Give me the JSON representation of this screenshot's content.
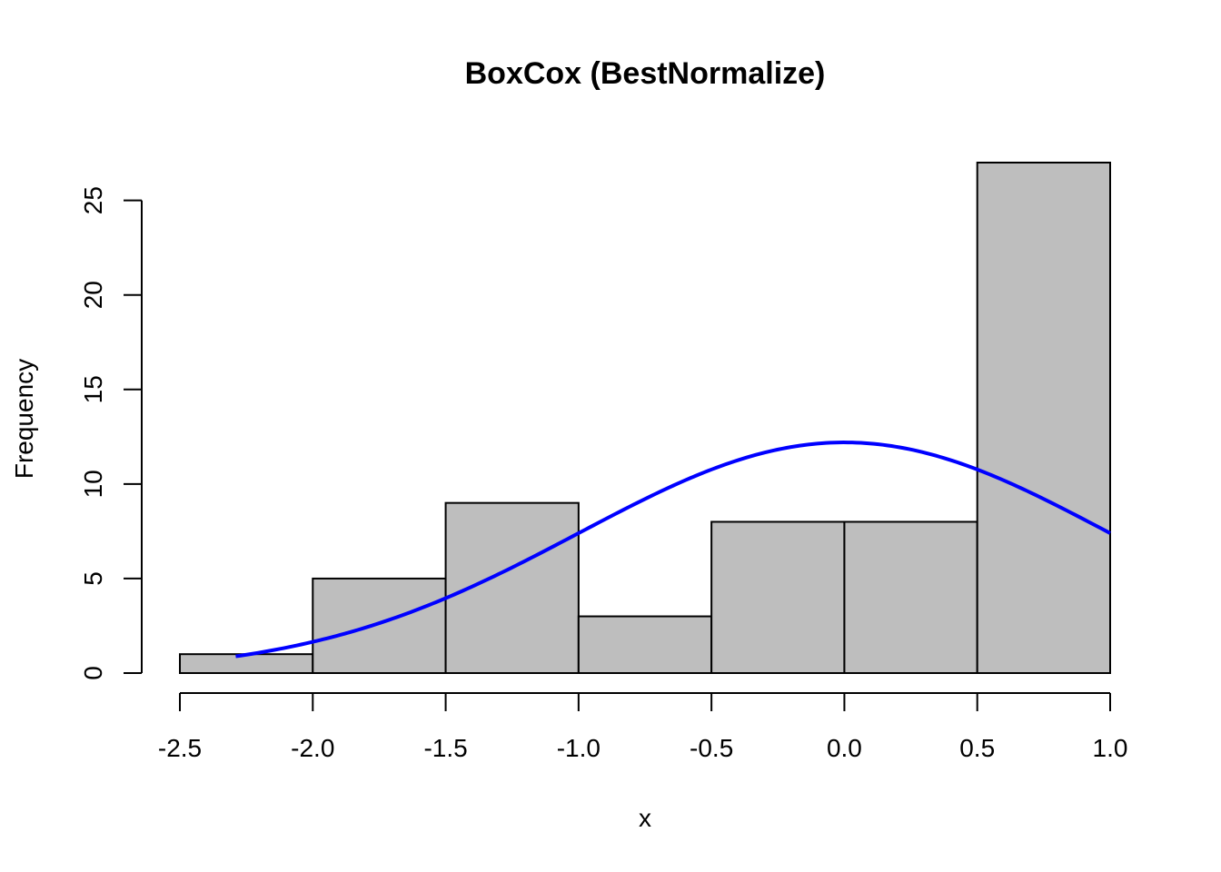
{
  "chart_data": {
    "type": "bar",
    "title": "BoxCox (BestNormalize)",
    "xlabel": "x",
    "ylabel": "Frequency",
    "bins": [
      {
        "start": -2.5,
        "end": -2.0,
        "count": 1
      },
      {
        "start": -2.0,
        "end": -1.5,
        "count": 5
      },
      {
        "start": -1.5,
        "end": -1.0,
        "count": 9
      },
      {
        "start": -1.0,
        "end": -0.5,
        "count": 3
      },
      {
        "start": -0.5,
        "end": 0.0,
        "count": 8
      },
      {
        "start": 0.0,
        "end": 0.5,
        "count": 8
      },
      {
        "start": 0.5,
        "end": 1.0,
        "count": 27
      }
    ],
    "xlim": [
      -2.5,
      1.0
    ],
    "ylim": [
      0,
      27
    ],
    "x_ticks": [
      -2.5,
      -2.0,
      -1.5,
      -1.0,
      -0.5,
      0.0,
      0.5,
      1.0
    ],
    "x_tick_labels": [
      "-2.5",
      "-2.0",
      "-1.5",
      "-1.0",
      "-0.5",
      "0.0",
      "0.5",
      "1.0"
    ],
    "y_ticks": [
      0,
      5,
      10,
      15,
      20,
      25
    ],
    "y_tick_labels": [
      "0",
      "5",
      "10",
      "15",
      "20",
      "25"
    ],
    "curve": {
      "type": "normal-density",
      "x_start": -2.29,
      "x_end": 1.0,
      "mean": 0.0,
      "sd": 1.0,
      "peak_value": 12.2
    },
    "colors": {
      "bar_fill": "#bebebe",
      "bar_stroke": "#000000",
      "curve": "#0000ff"
    },
    "grid": false,
    "legend": "none"
  }
}
